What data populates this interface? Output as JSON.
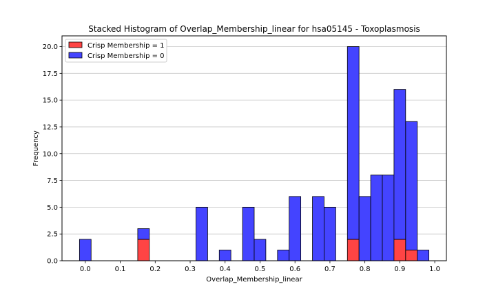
{
  "chart_data": {
    "type": "bar",
    "stacked": true,
    "title": "Stacked Histogram of Overlap_Membership_linear for hsa05145 - Toxoplasmosis",
    "xlabel": "Overlap_Membership_linear",
    "ylabel": "Frequency",
    "xlim": [
      -0.0667,
      1.0333
    ],
    "ylim": [
      0,
      21
    ],
    "grid": "y",
    "legend_position": "top-left",
    "bin_width": 0.0333,
    "x_ticks": [
      "0.0",
      "0.1",
      "0.2",
      "0.3",
      "0.4",
      "0.5",
      "0.6",
      "0.7",
      "0.8",
      "0.9",
      "1.0"
    ],
    "y_ticks": [
      "0.0",
      "2.5",
      "5.0",
      "7.5",
      "10.0",
      "12.5",
      "15.0",
      "17.5",
      "20.0"
    ],
    "bin_starts": [
      -0.0167,
      0.0167,
      0.05,
      0.0833,
      0.1167,
      0.15,
      0.1833,
      0.2167,
      0.25,
      0.2833,
      0.3167,
      0.35,
      0.3833,
      0.4167,
      0.45,
      0.4833,
      0.5167,
      0.55,
      0.5833,
      0.6167,
      0.65,
      0.6833,
      0.7167,
      0.75,
      0.7833,
      0.8167,
      0.85,
      0.8833,
      0.9167,
      0.95
    ],
    "series": [
      {
        "name": "Crisp Membership = 1",
        "color": "#ff4444",
        "values": [
          0,
          0,
          0,
          0,
          0,
          2,
          0,
          0,
          0,
          0,
          0,
          0,
          0,
          0,
          0,
          0,
          0,
          0,
          0,
          0,
          0,
          0,
          0,
          2,
          0,
          0,
          0,
          2,
          1,
          0
        ]
      },
      {
        "name": "Crisp Membership = 0",
        "color": "#4444ff",
        "values": [
          2,
          0,
          0,
          0,
          0,
          1,
          0,
          0,
          0,
          0,
          5,
          0,
          1,
          0,
          5,
          2,
          0,
          1,
          6,
          0,
          6,
          5,
          0,
          18,
          6,
          8,
          8,
          14,
          12,
          1
        ]
      }
    ]
  }
}
